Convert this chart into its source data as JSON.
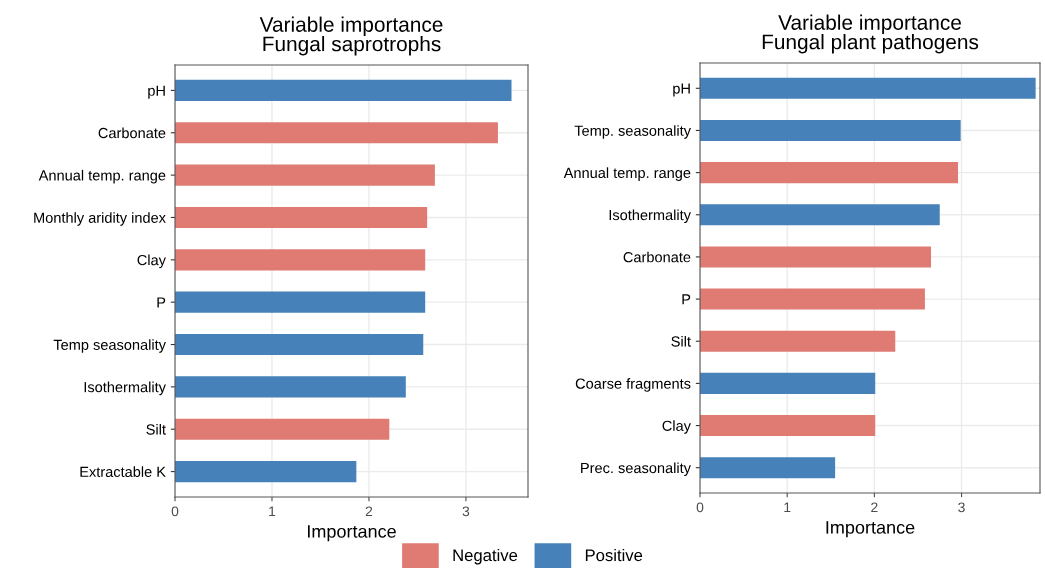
{
  "chart_data": [
    {
      "type": "bar",
      "orientation": "horizontal",
      "title": "Variable importance\nFungal saprotrophs",
      "xlabel": "Importance",
      "categories": [
        "pH",
        "Carbonate",
        "Annual temp. range",
        "Monthly aridity index",
        "Clay",
        "P",
        "Temp seasonality",
        "Isothermality",
        "Silt",
        "Extractable K"
      ],
      "series": [
        {
          "name": "Negative",
          "color": "#e07b74",
          "values": [
            null,
            3.33,
            2.68,
            2.6,
            2.58,
            null,
            null,
            null,
            2.21,
            null
          ]
        },
        {
          "name": "Positive",
          "color": "#4682b9",
          "values": [
            3.47,
            null,
            null,
            null,
            null,
            2.58,
            2.56,
            2.38,
            null,
            1.87
          ]
        }
      ],
      "xlim": [
        0,
        3.64
      ],
      "xticks": [
        0,
        1,
        2,
        3
      ],
      "grid": true,
      "legend": "bottom"
    },
    {
      "type": "bar",
      "orientation": "horizontal",
      "title": "Variable importance\nFungal plant pathogens",
      "xlabel": "Importance",
      "categories": [
        "pH",
        "Temp. seasonality",
        "Annual temp. range",
        "Isothermality",
        "Carbonate",
        "P",
        "Silt",
        "Coarse fragments",
        "Clay",
        "Prec. seasonality"
      ],
      "series": [
        {
          "name": "Negative",
          "color": "#e07b74",
          "values": [
            null,
            null,
            2.96,
            null,
            2.65,
            2.58,
            2.24,
            null,
            2.01,
            null
          ]
        },
        {
          "name": "Positive",
          "color": "#4682b9",
          "values": [
            3.85,
            2.99,
            null,
            2.75,
            null,
            null,
            null,
            2.01,
            null,
            1.55
          ]
        }
      ],
      "xlim": [
        0,
        3.9
      ],
      "xticks": [
        0,
        1,
        2,
        3
      ],
      "grid": true,
      "legend": "bottom"
    }
  ]
}
